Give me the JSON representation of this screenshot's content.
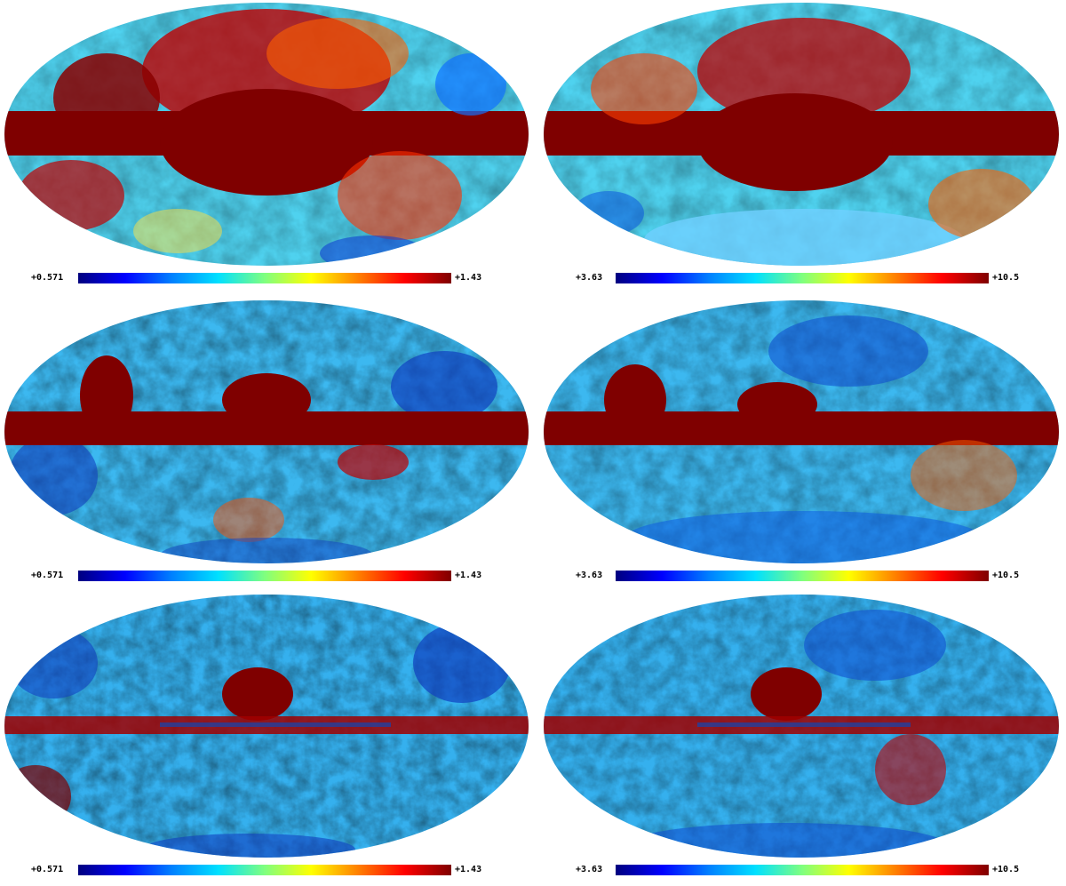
{
  "panels": [
    {
      "id": "p1",
      "colorbar": {
        "min": "+0.571",
        "max": "+1.43"
      }
    },
    {
      "id": "p2",
      "colorbar": {
        "min": "+3.63",
        "max": "+10.5"
      }
    },
    {
      "id": "p3",
      "colorbar": {
        "min": "+0.571",
        "max": "+1.43"
      }
    },
    {
      "id": "p4",
      "colorbar": {
        "min": "+3.63",
        "max": "+10.5"
      }
    },
    {
      "id": "p5",
      "colorbar": {
        "min": "+0.571",
        "max": "+1.43"
      }
    },
    {
      "id": "p6",
      "colorbar": {
        "min": "+3.63",
        "max": "+10.5"
      }
    }
  ],
  "colormap": [
    "#00007f",
    "#0000ff",
    "#0080ff",
    "#00e0ff",
    "#7fff7f",
    "#ffff00",
    "#ff8000",
    "#ff0000",
    "#7f0000"
  ]
}
